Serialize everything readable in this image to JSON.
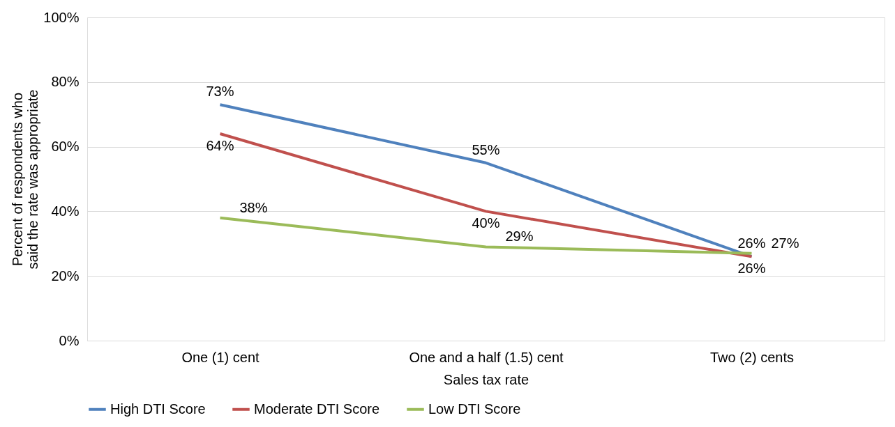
{
  "chart_data": {
    "type": "line",
    "xlabel": "Sales tax rate",
    "ylabel": "Percent of respondents who  said the rate was appropriate",
    "categories": [
      "One (1) cent",
      "One and a half (1.5) cent",
      "Two (2) cents"
    ],
    "series": [
      {
        "name": "High DTI Score",
        "color": "#4f81bd",
        "values": [
          73,
          55,
          26
        ],
        "value_labels": [
          "73%",
          "55%",
          "26%"
        ]
      },
      {
        "name": "Moderate DTI Score",
        "color": "#c0504d",
        "values": [
          64,
          40,
          26
        ],
        "value_labels": [
          "64%",
          "40%",
          "26%"
        ]
      },
      {
        "name": "Low DTI Score",
        "color": "#9bbb59",
        "values": [
          38,
          29,
          27
        ],
        "value_labels": [
          "38%",
          "29%",
          "27%"
        ]
      }
    ],
    "ylim": [
      0,
      100
    ],
    "yticks": [
      {
        "value": 0,
        "label": "0%"
      },
      {
        "value": 20,
        "label": "20%"
      },
      {
        "value": 40,
        "label": "40%"
      },
      {
        "value": 60,
        "label": "60%"
      },
      {
        "value": 80,
        "label": "80%"
      },
      {
        "value": 100,
        "label": "100%"
      }
    ],
    "grid": "y",
    "legend": "bottom",
    "marker": "none",
    "line_style": "solid"
  }
}
